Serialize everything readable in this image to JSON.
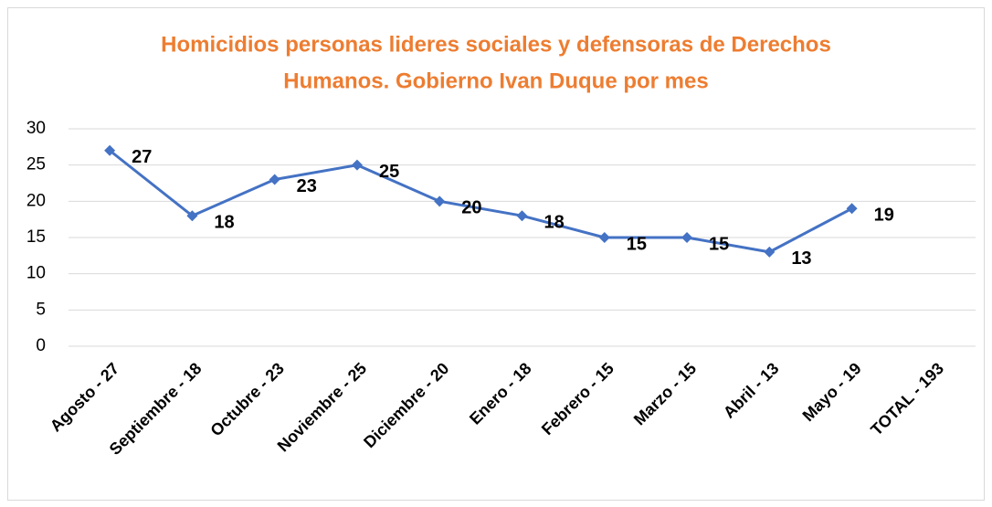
{
  "chart_data": {
    "type": "line",
    "title": [
      "Homicidios personas lideres sociales y defensoras de Derechos",
      "Humanos.  Gobierno Ivan Duque por mes"
    ],
    "categories": [
      "Agosto - 27",
      "Septiembre - 18",
      "Octubre - 23",
      "Noviembre - 25",
      "Diciembre - 20",
      "Enero - 18",
      "Febrero - 15",
      "Marzo - 15",
      "Abril - 13",
      "Mayo - 19",
      "TOTAL - 193"
    ],
    "series": [
      {
        "name": "Homicidios",
        "color": "#4472C4",
        "values": [
          27,
          18,
          23,
          25,
          20,
          18,
          15,
          15,
          13,
          19,
          null
        ]
      }
    ],
    "ylim": [
      0,
      30
    ],
    "yticks": [
      0,
      5,
      10,
      15,
      20,
      25,
      30
    ],
    "grid": true
  }
}
